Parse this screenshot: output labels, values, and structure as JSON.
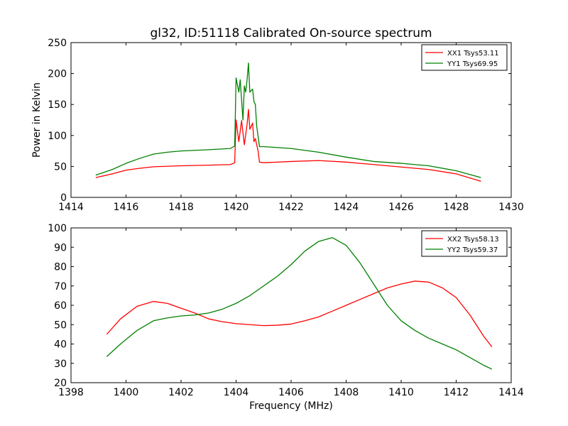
{
  "title": "gl32, ID:51118 Calibrated On-source spectrum",
  "colors": {
    "xx": "#ff0000",
    "yy": "#008000"
  },
  "chart_data": [
    {
      "type": "line",
      "xlabel": "",
      "ylabel": "Power in Kelvin",
      "xlim": [
        1414,
        1430
      ],
      "ylim": [
        0,
        250
      ],
      "xticks": [
        "1414",
        "1416",
        "1418",
        "1420",
        "1422",
        "1424",
        "1426",
        "1428",
        "1430"
      ],
      "yticks": [
        "0",
        "50",
        "100",
        "150",
        "200",
        "250"
      ],
      "legend": "top-right",
      "series": [
        {
          "name": "XX1 Tsys53.11",
          "color": "#ff0000",
          "points": [
            [
              1414.9,
              32
            ],
            [
              1415.5,
              38
            ],
            [
              1416,
              44
            ],
            [
              1416.5,
              47
            ],
            [
              1417,
              49.5
            ],
            [
              1418,
              51
            ],
            [
              1419,
              52
            ],
            [
              1419.8,
              53
            ],
            [
              1419.95,
              56
            ],
            [
              1420.0,
              125
            ],
            [
              1420.1,
              90
            ],
            [
              1420.2,
              124
            ],
            [
              1420.3,
              85
            ],
            [
              1420.4,
              118
            ],
            [
              1420.45,
              142
            ],
            [
              1420.5,
              110
            ],
            [
              1420.6,
              120
            ],
            [
              1420.65,
              90
            ],
            [
              1420.7,
              95
            ],
            [
              1420.8,
              75
            ],
            [
              1420.85,
              57
            ],
            [
              1421,
              56
            ],
            [
              1422,
              58
            ],
            [
              1423,
              59.5
            ],
            [
              1424,
              57
            ],
            [
              1425,
              53
            ],
            [
              1426,
              49
            ],
            [
              1427,
              45
            ],
            [
              1428,
              38
            ],
            [
              1428.9,
              26
            ]
          ]
        },
        {
          "name": "YY1 Tsys69.95",
          "color": "#008000",
          "points": [
            [
              1414.9,
              36
            ],
            [
              1415.5,
              45
            ],
            [
              1416,
              55
            ],
            [
              1416.5,
              63
            ],
            [
              1417,
              70
            ],
            [
              1417.5,
              73
            ],
            [
              1418,
              75
            ],
            [
              1419,
              77
            ],
            [
              1419.8,
              79
            ],
            [
              1419.95,
              83
            ],
            [
              1420.0,
              193
            ],
            [
              1420.1,
              170
            ],
            [
              1420.15,
              190
            ],
            [
              1420.25,
              125
            ],
            [
              1420.3,
              180
            ],
            [
              1420.35,
              170
            ],
            [
              1420.4,
              190
            ],
            [
              1420.45,
              217
            ],
            [
              1420.5,
              170
            ],
            [
              1420.6,
              175
            ],
            [
              1420.65,
              155
            ],
            [
              1420.7,
              150
            ],
            [
              1420.75,
              115
            ],
            [
              1420.85,
              82
            ],
            [
              1421,
              82
            ],
            [
              1422,
              79
            ],
            [
              1423,
              73
            ],
            [
              1424,
              65
            ],
            [
              1425,
              58
            ],
            [
              1426,
              55
            ],
            [
              1427,
              51
            ],
            [
              1428,
              43
            ],
            [
              1428.9,
              32
            ]
          ]
        }
      ]
    },
    {
      "type": "line",
      "xlabel": "Frequency (MHz)",
      "ylabel": "",
      "xlim": [
        1398,
        1414
      ],
      "ylim": [
        20,
        100
      ],
      "xticks": [
        "1398",
        "1400",
        "1402",
        "1404",
        "1406",
        "1408",
        "1410",
        "1412",
        "1414"
      ],
      "yticks": [
        "20",
        "30",
        "40",
        "50",
        "60",
        "70",
        "80",
        "90",
        "100"
      ],
      "legend": "top-right",
      "series": [
        {
          "name": "XX2 Tsys58.13",
          "color": "#ff0000",
          "points": [
            [
              1399.3,
              45
            ],
            [
              1399.8,
              53
            ],
            [
              1400.4,
              59.5
            ],
            [
              1401,
              62
            ],
            [
              1401.5,
              61
            ],
            [
              1402,
              58.5
            ],
            [
              1402.5,
              56
            ],
            [
              1403,
              53
            ],
            [
              1403.5,
              51.5
            ],
            [
              1404,
              50.5
            ],
            [
              1404.5,
              50
            ],
            [
              1405,
              49.5
            ],
            [
              1405.5,
              49.7
            ],
            [
              1406,
              50.3
            ],
            [
              1406.5,
              52
            ],
            [
              1407,
              54
            ],
            [
              1407.5,
              57
            ],
            [
              1408,
              60
            ],
            [
              1408.5,
              63
            ],
            [
              1409,
              66
            ],
            [
              1409.5,
              69
            ],
            [
              1410,
              71
            ],
            [
              1410.5,
              72.5
            ],
            [
              1411,
              72
            ],
            [
              1411.5,
              69
            ],
            [
              1412,
              64
            ],
            [
              1412.5,
              55
            ],
            [
              1413,
              44
            ],
            [
              1413.3,
              38.5
            ]
          ]
        },
        {
          "name": "YY2 Tsys59.37",
          "color": "#008000",
          "points": [
            [
              1399.3,
              33.5
            ],
            [
              1399.8,
              40
            ],
            [
              1400.4,
              47
            ],
            [
              1401,
              52
            ],
            [
              1401.5,
              53.5
            ],
            [
              1402,
              54.5
            ],
            [
              1402.5,
              55
            ],
            [
              1403,
              56
            ],
            [
              1403.5,
              58
            ],
            [
              1404,
              61
            ],
            [
              1404.5,
              65
            ],
            [
              1405,
              70
            ],
            [
              1405.5,
              75
            ],
            [
              1406,
              81
            ],
            [
              1406.5,
              88
            ],
            [
              1407,
              93
            ],
            [
              1407.5,
              95
            ],
            [
              1408,
              91
            ],
            [
              1408.5,
              82
            ],
            [
              1409,
              71
            ],
            [
              1409.5,
              60
            ],
            [
              1410,
              52
            ],
            [
              1410.5,
              47
            ],
            [
              1411,
              43
            ],
            [
              1411.5,
              40
            ],
            [
              1412,
              37
            ],
            [
              1412.5,
              33
            ],
            [
              1413,
              29
            ],
            [
              1413.3,
              27
            ]
          ]
        }
      ]
    }
  ]
}
